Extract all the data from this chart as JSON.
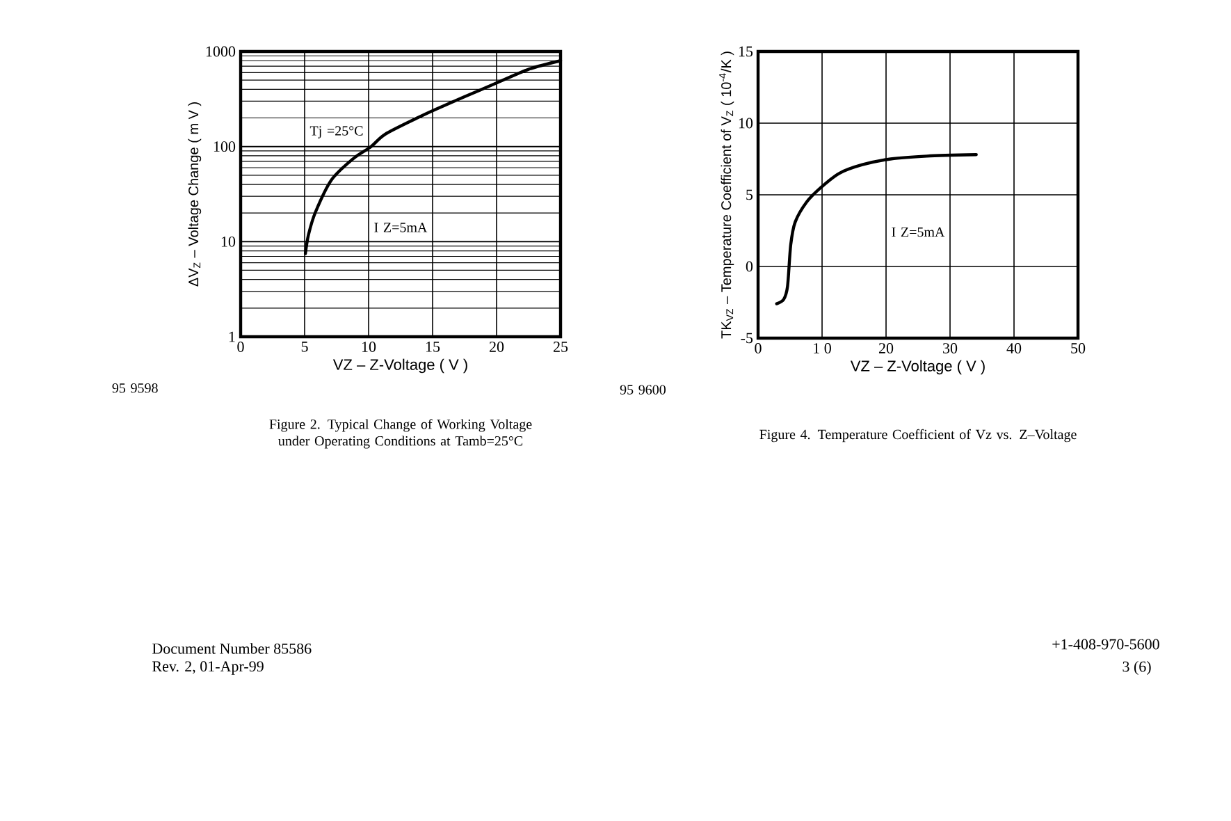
{
  "chart_data": [
    {
      "type": "line",
      "xlabel": "VZ – Z-Voltage ( V )",
      "ylabel": "ΔV$_{Z}$ – Voltage Change ( m V )",
      "log": "y",
      "grid": true,
      "xlim": [
        0,
        25
      ],
      "ylim": [
        1,
        1000
      ],
      "xticks": [
        0,
        5,
        10,
        15,
        20,
        25
      ],
      "yticks": [
        1,
        10,
        100,
        1000
      ],
      "color": "#000000",
      "x": [
        5.06,
        5.3,
        5.85,
        7.1,
        8.74,
        10.19,
        11.3,
        13.8,
        15.2,
        17.4,
        19.9,
        22.5,
        25
      ],
      "values": [
        7.5,
        11.8,
        20.5,
        44.7,
        73.6,
        100,
        135,
        200,
        245,
        330,
        460,
        650,
        800
      ],
      "annotations": [
        "Tj =25°C",
        "I Z=5mA",
        "95 9598",
        "Figure 2. Typical Change of Working Voltage under Operating Conditions at Tamb=25°C"
      ]
    },
    {
      "type": "line",
      "xlabel": "VZ – Z-Voltage ( V )",
      "ylabel": "TK$_{VZ}$ – Temperature Coefficient of V$_{Z}$ ( 10$^{-4}$/K )",
      "grid": true,
      "xlim": [
        0,
        50
      ],
      "ylim": [
        -5,
        15
      ],
      "xticks": [
        0,
        {
          "value": 10,
          "label": "1 0"
        },
        20,
        30,
        40,
        50
      ],
      "yticks": [
        -5,
        0,
        5,
        10,
        15
      ],
      "color": "#000000",
      "x": [
        2.9,
        4.0,
        4.6,
        5.1,
        5.8,
        7.6,
        9.8,
        12.7,
        16.3,
        20.7,
        26.4,
        34.1
      ],
      "values": [
        -2.6,
        -2.3,
        -1.4,
        1.5,
        3.1,
        4.5,
        5.5,
        6.5,
        7.1,
        7.5,
        7.7,
        7.8
      ],
      "annotations": [
        "I Z=5mA",
        "95 9600",
        "Figure 4. Temperature Coefficient of Vz vs. Z–Voltage"
      ]
    },
    {
      "type": "other",
      "annotations": [
        "Document Number 85586",
        "Rev. 2, 01-Apr-99",
        "+1-408-970-5600",
        "3 (6)"
      ]
    }
  ]
}
